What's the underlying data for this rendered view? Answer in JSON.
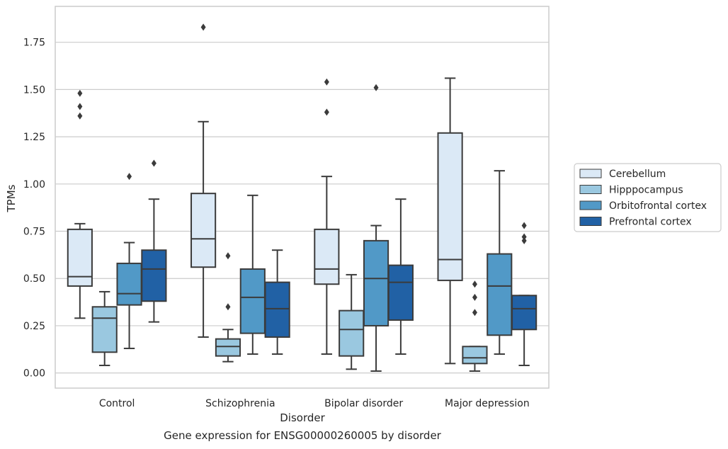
{
  "caption": "Gene expression for ENSG00000260005 by disorder",
  "chart_data": {
    "type": "box",
    "xlabel": "Disorder",
    "ylabel": "TPMs",
    "ylim": [
      -0.08,
      1.94
    ],
    "yticks": [
      0.0,
      0.25,
      0.5,
      0.75,
      1.0,
      1.25,
      1.5,
      1.75
    ],
    "ytick_labels": [
      "0.00",
      "0.25",
      "0.50",
      "0.75",
      "1.00",
      "1.25",
      "1.50",
      "1.75"
    ],
    "grid": true,
    "legend_position": "right",
    "categories": [
      "Control",
      "Schizophrenia",
      "Bipolar disorder",
      "Major depression"
    ],
    "series": [
      {
        "name": "Cerebellum",
        "color": "#dbe9f6",
        "boxes": [
          {
            "whislo": 0.29,
            "q1": 0.46,
            "med": 0.51,
            "q3": 0.76,
            "whishi": 0.79,
            "fliers": [
              1.36,
              1.41,
              1.48
            ]
          },
          {
            "whislo": 0.19,
            "q1": 0.56,
            "med": 0.71,
            "q3": 0.95,
            "whishi": 1.33,
            "fliers": [
              1.83
            ]
          },
          {
            "whislo": 0.1,
            "q1": 0.47,
            "med": 0.55,
            "q3": 0.76,
            "whishi": 1.04,
            "fliers": [
              1.38,
              1.54
            ]
          },
          {
            "whislo": 0.05,
            "q1": 0.49,
            "med": 0.6,
            "q3": 1.27,
            "whishi": 1.56,
            "fliers": []
          }
        ]
      },
      {
        "name": "Hipppocampus",
        "color": "#9ac8e0",
        "boxes": [
          {
            "whislo": 0.04,
            "q1": 0.11,
            "med": 0.29,
            "q3": 0.35,
            "whishi": 0.43,
            "fliers": []
          },
          {
            "whislo": 0.06,
            "q1": 0.09,
            "med": 0.14,
            "q3": 0.18,
            "whishi": 0.23,
            "fliers": [
              0.35,
              0.62
            ]
          },
          {
            "whislo": 0.02,
            "q1": 0.09,
            "med": 0.23,
            "q3": 0.33,
            "whishi": 0.52,
            "fliers": []
          },
          {
            "whislo": 0.01,
            "q1": 0.05,
            "med": 0.08,
            "q3": 0.14,
            "whishi": 0.14,
            "fliers": [
              0.32,
              0.4,
              0.47
            ]
          }
        ]
      },
      {
        "name": "Orbitofrontal cortex",
        "color": "#5199c7",
        "boxes": [
          {
            "whislo": 0.13,
            "q1": 0.36,
            "med": 0.42,
            "q3": 0.58,
            "whishi": 0.69,
            "fliers": [
              1.04
            ]
          },
          {
            "whislo": 0.1,
            "q1": 0.21,
            "med": 0.4,
            "q3": 0.55,
            "whishi": 0.94,
            "fliers": []
          },
          {
            "whislo": 0.01,
            "q1": 0.25,
            "med": 0.5,
            "q3": 0.7,
            "whishi": 0.78,
            "fliers": [
              1.51
            ]
          },
          {
            "whislo": 0.1,
            "q1": 0.2,
            "med": 0.46,
            "q3": 0.63,
            "whishi": 1.07,
            "fliers": []
          }
        ]
      },
      {
        "name": "Prefrontal cortex",
        "color": "#2161a5",
        "boxes": [
          {
            "whislo": 0.27,
            "q1": 0.38,
            "med": 0.55,
            "q3": 0.65,
            "whishi": 0.92,
            "fliers": [
              1.11
            ]
          },
          {
            "whislo": 0.1,
            "q1": 0.19,
            "med": 0.34,
            "q3": 0.48,
            "whishi": 0.65,
            "fliers": []
          },
          {
            "whislo": 0.1,
            "q1": 0.28,
            "med": 0.48,
            "q3": 0.57,
            "whishi": 0.92,
            "fliers": []
          },
          {
            "whislo": 0.04,
            "q1": 0.23,
            "med": 0.34,
            "q3": 0.41,
            "whishi": 0.41,
            "fliers": [
              0.7,
              0.72,
              0.78
            ]
          }
        ]
      }
    ]
  }
}
